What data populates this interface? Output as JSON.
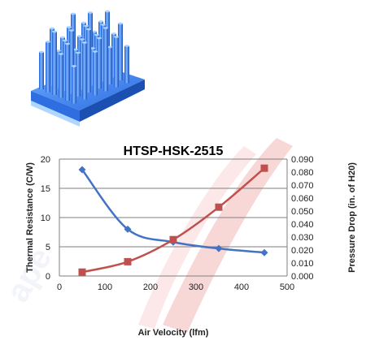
{
  "product_image": {
    "icon": "heatsink-pin-fin-image"
  },
  "chart_data": {
    "type": "line",
    "title": "HTSP-HSK-2515",
    "xlabel": "Air Velocity (lfm)",
    "ylabel_left": "Thermal Resistance (C/W)",
    "ylabel_right": "Pressure Drop (in. of H20)",
    "xlim": [
      0,
      500
    ],
    "ylim_left": [
      0,
      20
    ],
    "ylim_right": [
      0,
      0.09
    ],
    "x_ticks": [
      "0",
      "100",
      "200",
      "300",
      "400",
      "500"
    ],
    "y_left_ticks": [
      "0",
      "5",
      "10",
      "15",
      "20"
    ],
    "y_right_ticks": [
      "0.000",
      "0.010",
      "0.020",
      "0.030",
      "0.040",
      "0.050",
      "0.060",
      "0.070",
      "0.080",
      "0.090"
    ],
    "grid": "horizontal",
    "series": [
      {
        "axis": "left",
        "color": "#4472C4",
        "marker": "diamond",
        "x": [
          50,
          150,
          250,
          350,
          450
        ],
        "values": [
          18.2,
          8.0,
          5.8,
          4.7,
          4.0
        ]
      },
      {
        "axis": "right",
        "color": "#C0504D",
        "marker": "square",
        "x": [
          50,
          150,
          250,
          350,
          450
        ],
        "values": [
          0.003,
          0.011,
          0.028,
          0.053,
          0.083
        ]
      }
    ]
  }
}
